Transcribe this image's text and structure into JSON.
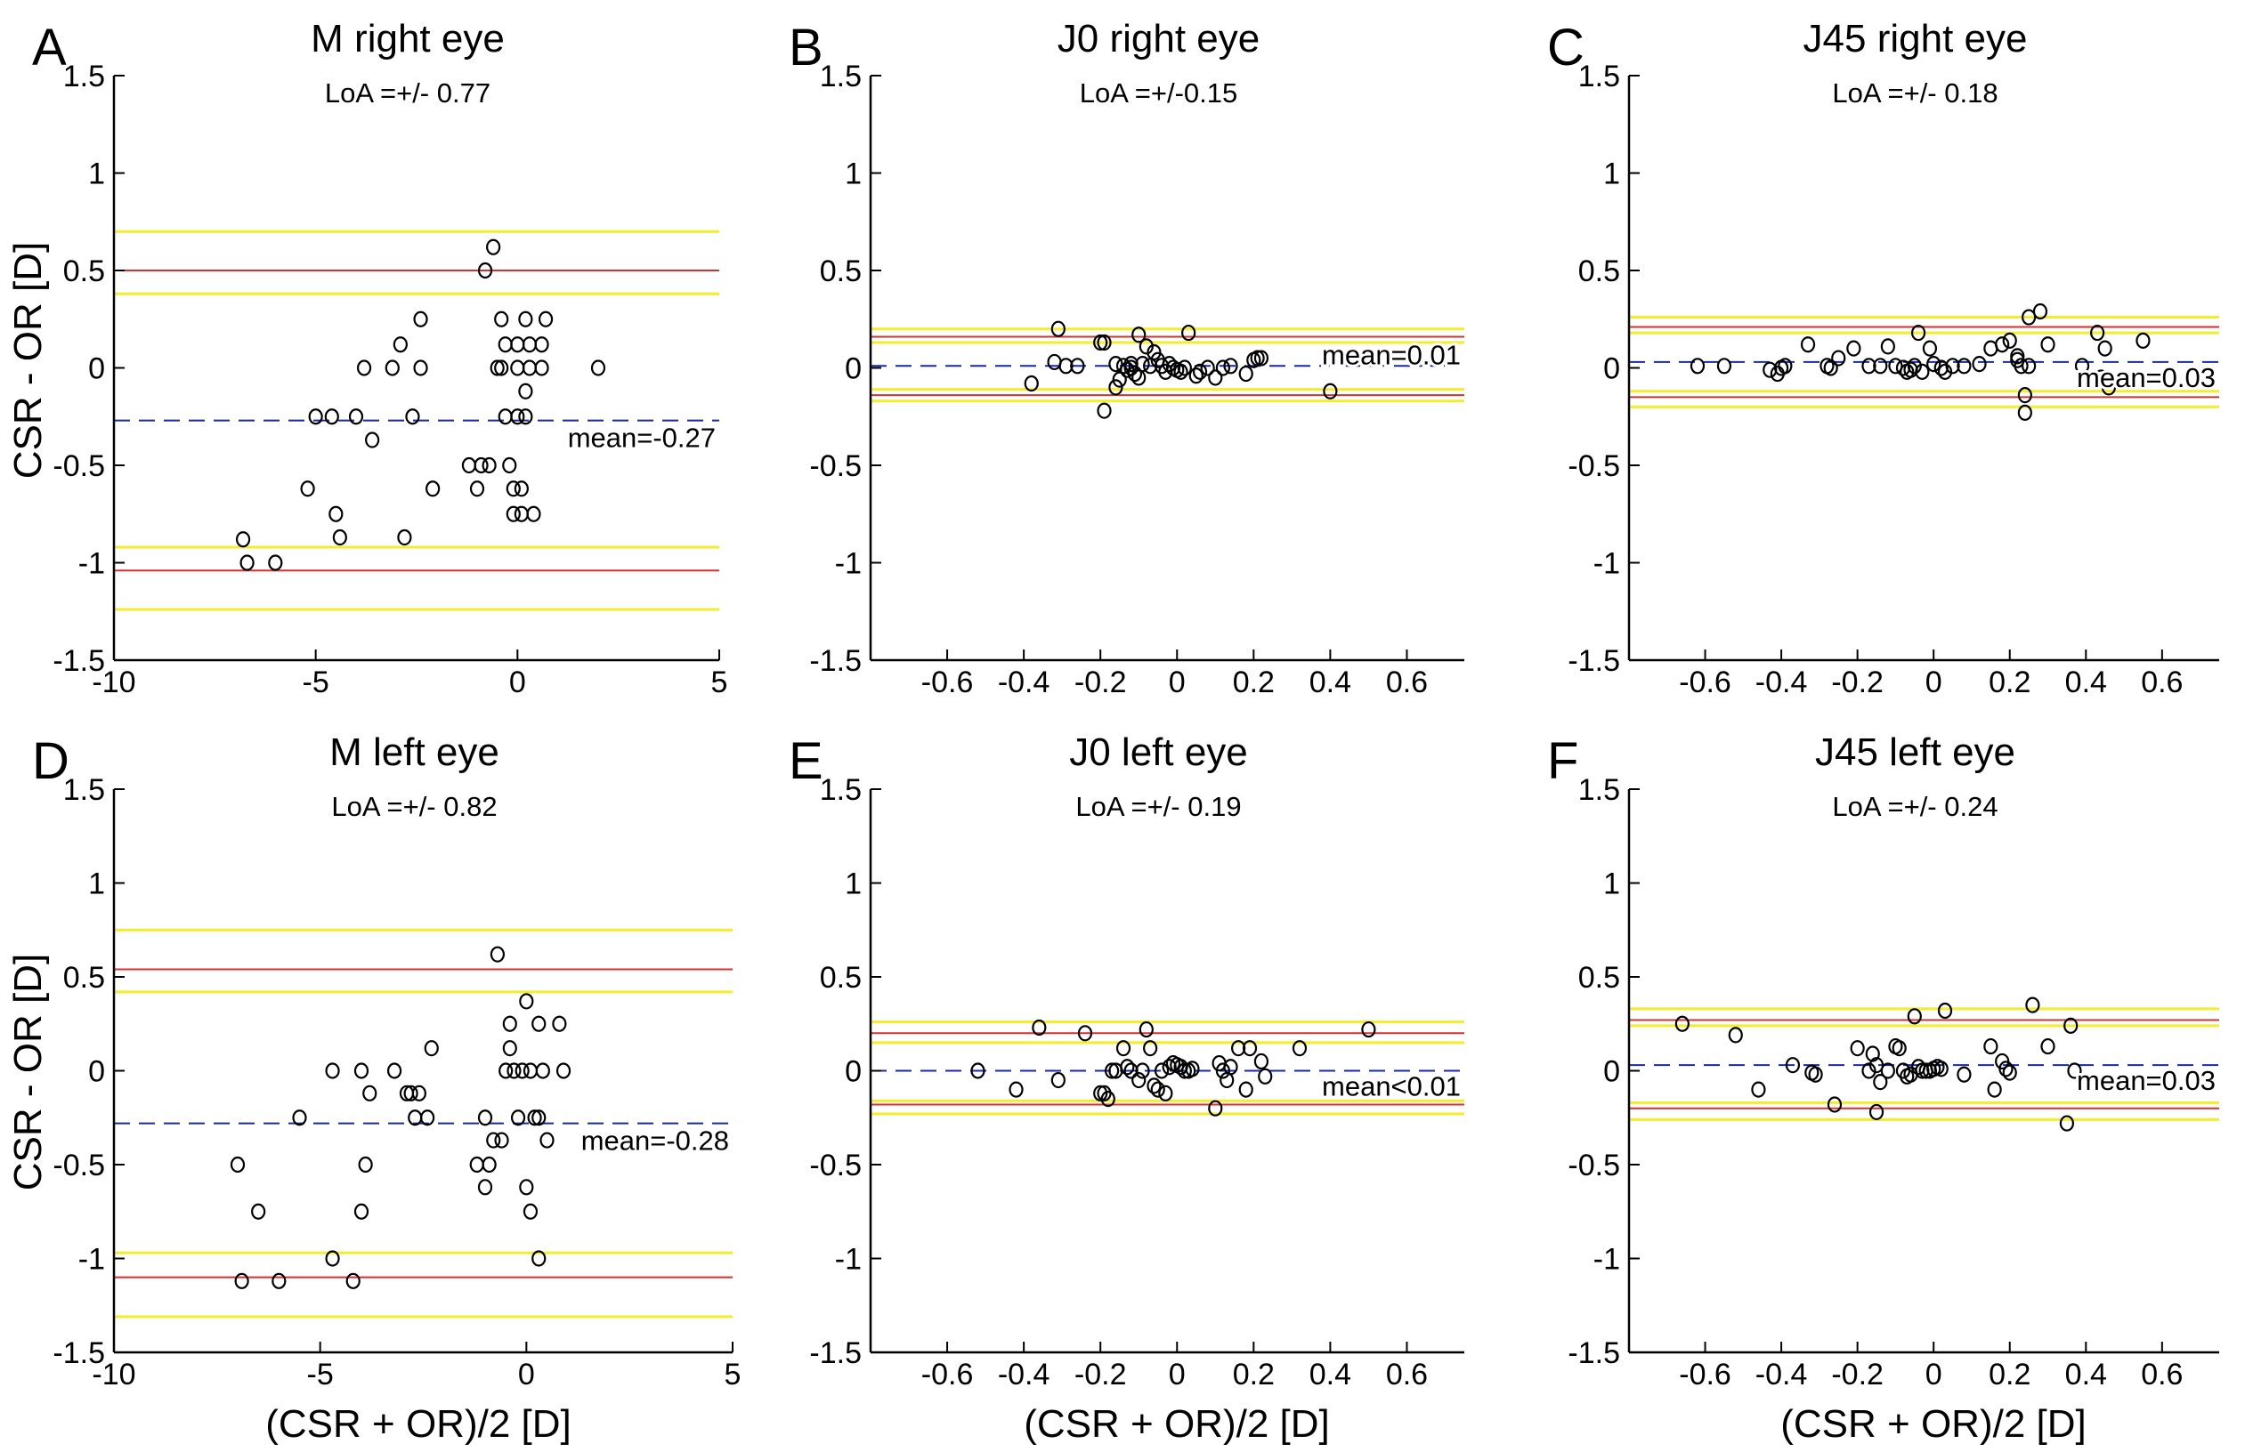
{
  "figure": {
    "ylabel": "CSR - OR [D]",
    "xlabel": "(CSR + OR)/2 [D]"
  },
  "colors": {
    "loa": "#cc3333",
    "ci": "#f2ee2e",
    "mean": "#1a2a9a",
    "point": "#000000",
    "axis": "#000000"
  },
  "chart_data": [
    {
      "type": "scatter",
      "letter": "A",
      "title": "M right eye",
      "subtitle": "LoA =+/- 0.77",
      "xlim": [
        -10,
        5
      ],
      "ylim": [
        -1.5,
        1.5
      ],
      "xticks": [
        -10,
        -5,
        0,
        5
      ],
      "xtick_labels": [
        "-10",
        "-5",
        "0",
        "5"
      ],
      "yticks": [
        -1.5,
        -1,
        -0.5,
        0,
        0.5,
        1,
        1.5
      ],
      "ytick_labels": [
        "-1.5",
        "-1",
        "-0.5",
        "0",
        "0.5",
        "1",
        "1.5"
      ],
      "mean": -0.27,
      "mean_label": "mean=-0.27",
      "loa": [
        0.5,
        -1.04
      ],
      "ci": [
        0.7,
        0.38,
        -0.92,
        -1.24
      ],
      "points": [
        [
          -6.8,
          -0.88
        ],
        [
          -6.7,
          -1.0
        ],
        [
          -6.0,
          -1.0
        ],
        [
          -5.2,
          -0.62
        ],
        [
          -5.0,
          -0.25
        ],
        [
          -4.6,
          -0.25
        ],
        [
          -4.5,
          -0.75
        ],
        [
          -4.4,
          -0.87
        ],
        [
          -4.0,
          -0.25
        ],
        [
          -3.8,
          0.0
        ],
        [
          -3.6,
          -0.37
        ],
        [
          -3.1,
          0.0
        ],
        [
          -2.9,
          0.12
        ],
        [
          -2.6,
          -0.25
        ],
        [
          -2.8,
          -0.87
        ],
        [
          -2.4,
          0.0
        ],
        [
          -2.4,
          0.25
        ],
        [
          -2.1,
          -0.62
        ],
        [
          -1.2,
          -0.5
        ],
        [
          -1.0,
          -0.62
        ],
        [
          -0.9,
          -0.5
        ],
        [
          -0.7,
          -0.5
        ],
        [
          -0.8,
          0.5
        ],
        [
          -0.6,
          0.62
        ],
        [
          -0.5,
          0.0
        ],
        [
          -0.4,
          0.0
        ],
        [
          -0.4,
          0.25
        ],
        [
          -0.3,
          0.12
        ],
        [
          -0.3,
          -0.25
        ],
        [
          -0.2,
          -0.5
        ],
        [
          -0.1,
          -0.62
        ],
        [
          -0.1,
          -0.75
        ],
        [
          0.0,
          0.0
        ],
        [
          0.0,
          0.12
        ],
        [
          0.0,
          -0.25
        ],
        [
          0.1,
          -0.62
        ],
        [
          0.1,
          -0.75
        ],
        [
          0.2,
          0.25
        ],
        [
          0.2,
          -0.12
        ],
        [
          0.3,
          0.0
        ],
        [
          0.3,
          0.12
        ],
        [
          0.4,
          -0.75
        ],
        [
          0.6,
          0.0
        ],
        [
          0.6,
          0.12
        ],
        [
          0.7,
          0.25
        ],
        [
          2.0,
          0.0
        ],
        [
          0.2,
          -0.25
        ]
      ]
    },
    {
      "type": "scatter",
      "letter": "B",
      "title": "J0 right eye",
      "subtitle": "LoA =+/-0.15",
      "xlim": [
        -0.8,
        0.75
      ],
      "ylim": [
        -1.5,
        1.5
      ],
      "xticks": [
        -0.6,
        -0.4,
        -0.2,
        0,
        0.2,
        0.4,
        0.6
      ],
      "xtick_labels": [
        "-0.6",
        "-0.4",
        "-0.2",
        "0",
        "0.2",
        "0.4",
        "0.6"
      ],
      "yticks": [
        -1.5,
        -1,
        -0.5,
        0,
        0.5,
        1,
        1.5
      ],
      "ytick_labels": [
        "-1.5",
        "-1",
        "-0.5",
        "0",
        "0.5",
        "1",
        "1.5"
      ],
      "mean": 0.01,
      "mean_label": "mean=0.01",
      "loa": [
        0.16,
        -0.14
      ],
      "ci": [
        0.2,
        0.13,
        -0.11,
        -0.17
      ],
      "points": [
        [
          -0.38,
          -0.08
        ],
        [
          -0.32,
          0.03
        ],
        [
          -0.31,
          0.2
        ],
        [
          -0.29,
          0.01
        ],
        [
          -0.26,
          0.01
        ],
        [
          -0.2,
          0.13
        ],
        [
          -0.19,
          0.13
        ],
        [
          -0.19,
          -0.22
        ],
        [
          -0.16,
          0.02
        ],
        [
          -0.16,
          -0.1
        ],
        [
          -0.15,
          -0.06
        ],
        [
          -0.14,
          0.01
        ],
        [
          -0.13,
          -0.01
        ],
        [
          -0.12,
          0.02
        ],
        [
          -0.12,
          0.0
        ],
        [
          -0.11,
          -0.03
        ],
        [
          -0.1,
          0.17
        ],
        [
          -0.1,
          -0.05
        ],
        [
          -0.09,
          0.02
        ],
        [
          -0.08,
          0.11
        ],
        [
          -0.07,
          0.01
        ],
        [
          -0.06,
          0.08
        ],
        [
          -0.05,
          0.04
        ],
        [
          -0.04,
          0.01
        ],
        [
          -0.03,
          -0.02
        ],
        [
          -0.02,
          0.02
        ],
        [
          -0.01,
          0.0
        ],
        [
          0.0,
          -0.01
        ],
        [
          0.01,
          -0.02
        ],
        [
          0.02,
          0.0
        ],
        [
          0.03,
          0.18
        ],
        [
          0.05,
          -0.04
        ],
        [
          0.06,
          -0.02
        ],
        [
          0.08,
          0.0
        ],
        [
          0.1,
          -0.05
        ],
        [
          0.12,
          0.0
        ],
        [
          0.14,
          0.01
        ],
        [
          0.18,
          -0.03
        ],
        [
          0.2,
          0.04
        ],
        [
          0.21,
          0.05
        ],
        [
          0.22,
          0.05
        ],
        [
          0.4,
          -0.12
        ]
      ]
    },
    {
      "type": "scatter",
      "letter": "C",
      "title": "J45 right eye",
      "subtitle": "LoA =+/- 0.18",
      "xlim": [
        -0.8,
        0.75
      ],
      "ylim": [
        -1.5,
        1.5
      ],
      "xticks": [
        -0.6,
        -0.4,
        -0.2,
        0,
        0.2,
        0.4,
        0.6
      ],
      "xtick_labels": [
        "-0.6",
        "-0.4",
        "-0.2",
        "0",
        "0.2",
        "0.4",
        "0.6"
      ],
      "yticks": [
        -1.5,
        -1,
        -0.5,
        0,
        0.5,
        1,
        1.5
      ],
      "ytick_labels": [
        "-1.5",
        "-1",
        "-0.5",
        "0",
        "0.5",
        "1",
        "1.5"
      ],
      "mean": 0.03,
      "mean_label": "mean=0.03",
      "loa": [
        0.21,
        -0.15
      ],
      "ci": [
        0.26,
        0.18,
        -0.12,
        -0.2
      ],
      "points": [
        [
          -0.62,
          0.01
        ],
        [
          -0.55,
          0.01
        ],
        [
          -0.43,
          -0.01
        ],
        [
          -0.41,
          -0.03
        ],
        [
          -0.4,
          0.0
        ],
        [
          -0.39,
          0.01
        ],
        [
          -0.33,
          0.12
        ],
        [
          -0.28,
          0.01
        ],
        [
          -0.27,
          0.0
        ],
        [
          -0.25,
          0.05
        ],
        [
          -0.21,
          0.1
        ],
        [
          -0.17,
          0.01
        ],
        [
          -0.14,
          0.01
        ],
        [
          -0.12,
          0.11
        ],
        [
          -0.1,
          0.01
        ],
        [
          -0.08,
          0.0
        ],
        [
          -0.07,
          -0.02
        ],
        [
          -0.06,
          -0.01
        ],
        [
          -0.05,
          0.01
        ],
        [
          -0.04,
          0.18
        ],
        [
          -0.03,
          -0.02
        ],
        [
          -0.01,
          0.1
        ],
        [
          0.0,
          0.02
        ],
        [
          0.02,
          0.0
        ],
        [
          0.03,
          -0.02
        ],
        [
          0.05,
          0.01
        ],
        [
          0.08,
          0.01
        ],
        [
          0.12,
          0.02
        ],
        [
          0.15,
          0.1
        ],
        [
          0.18,
          0.12
        ],
        [
          0.2,
          0.14
        ],
        [
          0.22,
          0.04
        ],
        [
          0.23,
          0.01
        ],
        [
          0.24,
          -0.14
        ],
        [
          0.25,
          0.01
        ],
        [
          0.25,
          0.26
        ],
        [
          0.28,
          0.29
        ],
        [
          0.3,
          0.12
        ],
        [
          0.39,
          0.01
        ],
        [
          0.43,
          0.18
        ],
        [
          0.44,
          -0.05
        ],
        [
          0.45,
          0.1
        ],
        [
          0.46,
          -0.1
        ],
        [
          0.55,
          0.14
        ],
        [
          0.24,
          -0.23
        ],
        [
          0.22,
          0.06
        ]
      ]
    },
    {
      "type": "scatter",
      "letter": "D",
      "title": "M left eye",
      "subtitle": "LoA =+/- 0.82",
      "xlim": [
        -10,
        5
      ],
      "ylim": [
        -1.5,
        1.5
      ],
      "xticks": [
        -10,
        -5,
        0,
        5
      ],
      "xtick_labels": [
        "-10",
        "-5",
        "0",
        "5"
      ],
      "yticks": [
        -1.5,
        -1,
        -0.5,
        0,
        0.5,
        1,
        1.5
      ],
      "ytick_labels": [
        "-1.5",
        "-1",
        "-0.5",
        "0",
        "0.5",
        "1",
        "1.5"
      ],
      "mean": -0.28,
      "mean_label": "mean=-0.28",
      "loa": [
        0.54,
        -1.1
      ],
      "ci": [
        0.75,
        0.42,
        -0.97,
        -1.31
      ],
      "points": [
        [
          -7.0,
          -0.5
        ],
        [
          -6.9,
          -1.12
        ],
        [
          -6.5,
          -0.75
        ],
        [
          -6.0,
          -1.12
        ],
        [
          -5.5,
          -0.25
        ],
        [
          -4.7,
          0.0
        ],
        [
          -4.7,
          -1.0
        ],
        [
          -4.2,
          -1.12
        ],
        [
          -4.0,
          0.0
        ],
        [
          -4.0,
          -0.75
        ],
        [
          -3.9,
          -0.5
        ],
        [
          -3.8,
          -0.12
        ],
        [
          -3.2,
          0.0
        ],
        [
          -2.9,
          -0.12
        ],
        [
          -2.8,
          -0.12
        ],
        [
          -2.7,
          -0.25
        ],
        [
          -2.6,
          -0.12
        ],
        [
          -2.4,
          -0.25
        ],
        [
          -2.3,
          0.12
        ],
        [
          -1.2,
          -0.5
        ],
        [
          -1.0,
          -0.62
        ],
        [
          -0.9,
          -0.5
        ],
        [
          -0.8,
          -0.37
        ],
        [
          -0.7,
          0.62
        ],
        [
          -0.6,
          -0.37
        ],
        [
          -0.5,
          0.0
        ],
        [
          -0.4,
          0.12
        ],
        [
          -0.4,
          0.25
        ],
        [
          -0.3,
          0.0
        ],
        [
          -0.2,
          -0.25
        ],
        [
          -0.1,
          0.0
        ],
        [
          0.0,
          0.37
        ],
        [
          0.0,
          -0.62
        ],
        [
          0.1,
          0.0
        ],
        [
          0.1,
          -0.75
        ],
        [
          0.2,
          -0.25
        ],
        [
          0.3,
          0.25
        ],
        [
          0.3,
          -1.0
        ],
        [
          0.3,
          -0.25
        ],
        [
          0.4,
          0.0
        ],
        [
          0.5,
          -0.37
        ],
        [
          0.8,
          0.25
        ],
        [
          0.9,
          0.0
        ],
        [
          -1.0,
          -0.25
        ]
      ]
    },
    {
      "type": "scatter",
      "letter": "E",
      "title": "J0 left eye",
      "subtitle": "LoA =+/- 0.19",
      "xlim": [
        -0.8,
        0.75
      ],
      "ylim": [
        -1.5,
        1.5
      ],
      "xticks": [
        -0.6,
        -0.4,
        -0.2,
        0,
        0.2,
        0.4,
        0.6
      ],
      "xtick_labels": [
        "-0.6",
        "-0.4",
        "-0.2",
        "0",
        "0.2",
        "0.4",
        "0.6"
      ],
      "yticks": [
        -1.5,
        -1,
        -0.5,
        0,
        0.5,
        1,
        1.5
      ],
      "ytick_labels": [
        "-1.5",
        "-1",
        "-0.5",
        "0",
        "0.5",
        "1",
        "1.5"
      ],
      "mean": 0.0,
      "mean_label": "mean<0.01",
      "loa": [
        0.2,
        -0.18
      ],
      "ci": [
        0.26,
        0.15,
        -0.16,
        -0.23
      ],
      "points": [
        [
          -0.52,
          0.0
        ],
        [
          -0.42,
          -0.1
        ],
        [
          -0.36,
          0.23
        ],
        [
          -0.31,
          -0.05
        ],
        [
          -0.24,
          0.2
        ],
        [
          -0.2,
          -0.12
        ],
        [
          -0.19,
          -0.12
        ],
        [
          -0.18,
          -0.15
        ],
        [
          -0.17,
          0.0
        ],
        [
          -0.16,
          0.0
        ],
        [
          -0.14,
          0.12
        ],
        [
          -0.13,
          0.02
        ],
        [
          -0.12,
          0.0
        ],
        [
          -0.1,
          -0.05
        ],
        [
          -0.09,
          0.0
        ],
        [
          -0.08,
          0.22
        ],
        [
          -0.07,
          0.12
        ],
        [
          -0.06,
          -0.08
        ],
        [
          -0.05,
          -0.1
        ],
        [
          -0.04,
          0.0
        ],
        [
          -0.03,
          -0.12
        ],
        [
          -0.02,
          0.02
        ],
        [
          -0.01,
          0.04
        ],
        [
          0.0,
          0.03
        ],
        [
          0.01,
          0.02
        ],
        [
          0.02,
          0.0
        ],
        [
          0.03,
          0.0
        ],
        [
          0.04,
          0.01
        ],
        [
          0.1,
          -0.2
        ],
        [
          0.11,
          0.04
        ],
        [
          0.12,
          0.0
        ],
        [
          0.13,
          -0.05
        ],
        [
          0.14,
          0.02
        ],
        [
          0.16,
          0.12
        ],
        [
          0.18,
          -0.1
        ],
        [
          0.19,
          0.12
        ],
        [
          0.22,
          0.05
        ],
        [
          0.23,
          -0.03
        ],
        [
          0.32,
          0.12
        ],
        [
          0.5,
          0.22
        ]
      ]
    },
    {
      "type": "scatter",
      "letter": "F",
      "title": "J45 left eye",
      "subtitle": "LoA =+/- 0.24",
      "xlim": [
        -0.8,
        0.75
      ],
      "ylim": [
        -1.5,
        1.5
      ],
      "xticks": [
        -0.6,
        -0.4,
        -0.2,
        0,
        0.2,
        0.4,
        0.6
      ],
      "xtick_labels": [
        "-0.6",
        "-0.4",
        "-0.2",
        "0",
        "0.2",
        "0.4",
        "0.6"
      ],
      "yticks": [
        -1.5,
        -1,
        -0.5,
        0,
        0.5,
        1,
        1.5
      ],
      "ytick_labels": [
        "-1.5",
        "-1",
        "-0.5",
        "0",
        "0.5",
        "1",
        "1.5"
      ],
      "mean": 0.03,
      "mean_label": "mean=0.03",
      "loa": [
        0.27,
        -0.2
      ],
      "ci": [
        0.33,
        0.24,
        -0.17,
        -0.26
      ],
      "points": [
        [
          -0.66,
          0.25
        ],
        [
          -0.52,
          0.19
        ],
        [
          -0.46,
          -0.1
        ],
        [
          -0.37,
          0.03
        ],
        [
          -0.32,
          -0.01
        ],
        [
          -0.31,
          -0.02
        ],
        [
          -0.26,
          -0.18
        ],
        [
          -0.2,
          0.12
        ],
        [
          -0.17,
          0.0
        ],
        [
          -0.16,
          0.09
        ],
        [
          -0.15,
          -0.22
        ],
        [
          -0.15,
          0.03
        ],
        [
          -0.14,
          -0.06
        ],
        [
          -0.12,
          0.0
        ],
        [
          -0.1,
          0.13
        ],
        [
          -0.09,
          0.12
        ],
        [
          -0.08,
          0.0
        ],
        [
          -0.07,
          -0.03
        ],
        [
          -0.06,
          -0.02
        ],
        [
          -0.05,
          0.29
        ],
        [
          -0.04,
          0.02
        ],
        [
          -0.03,
          0.0
        ],
        [
          -0.02,
          0.0
        ],
        [
          -0.01,
          0.0
        ],
        [
          0.0,
          0.01
        ],
        [
          0.01,
          0.02
        ],
        [
          0.02,
          0.01
        ],
        [
          0.03,
          0.32
        ],
        [
          0.08,
          -0.02
        ],
        [
          0.15,
          0.13
        ],
        [
          0.16,
          -0.1
        ],
        [
          0.18,
          0.05
        ],
        [
          0.19,
          0.01
        ],
        [
          0.2,
          -0.01
        ],
        [
          0.26,
          0.35
        ],
        [
          0.3,
          0.13
        ],
        [
          0.36,
          0.24
        ],
        [
          0.37,
          0.0
        ],
        [
          0.35,
          -0.28
        ]
      ]
    }
  ]
}
